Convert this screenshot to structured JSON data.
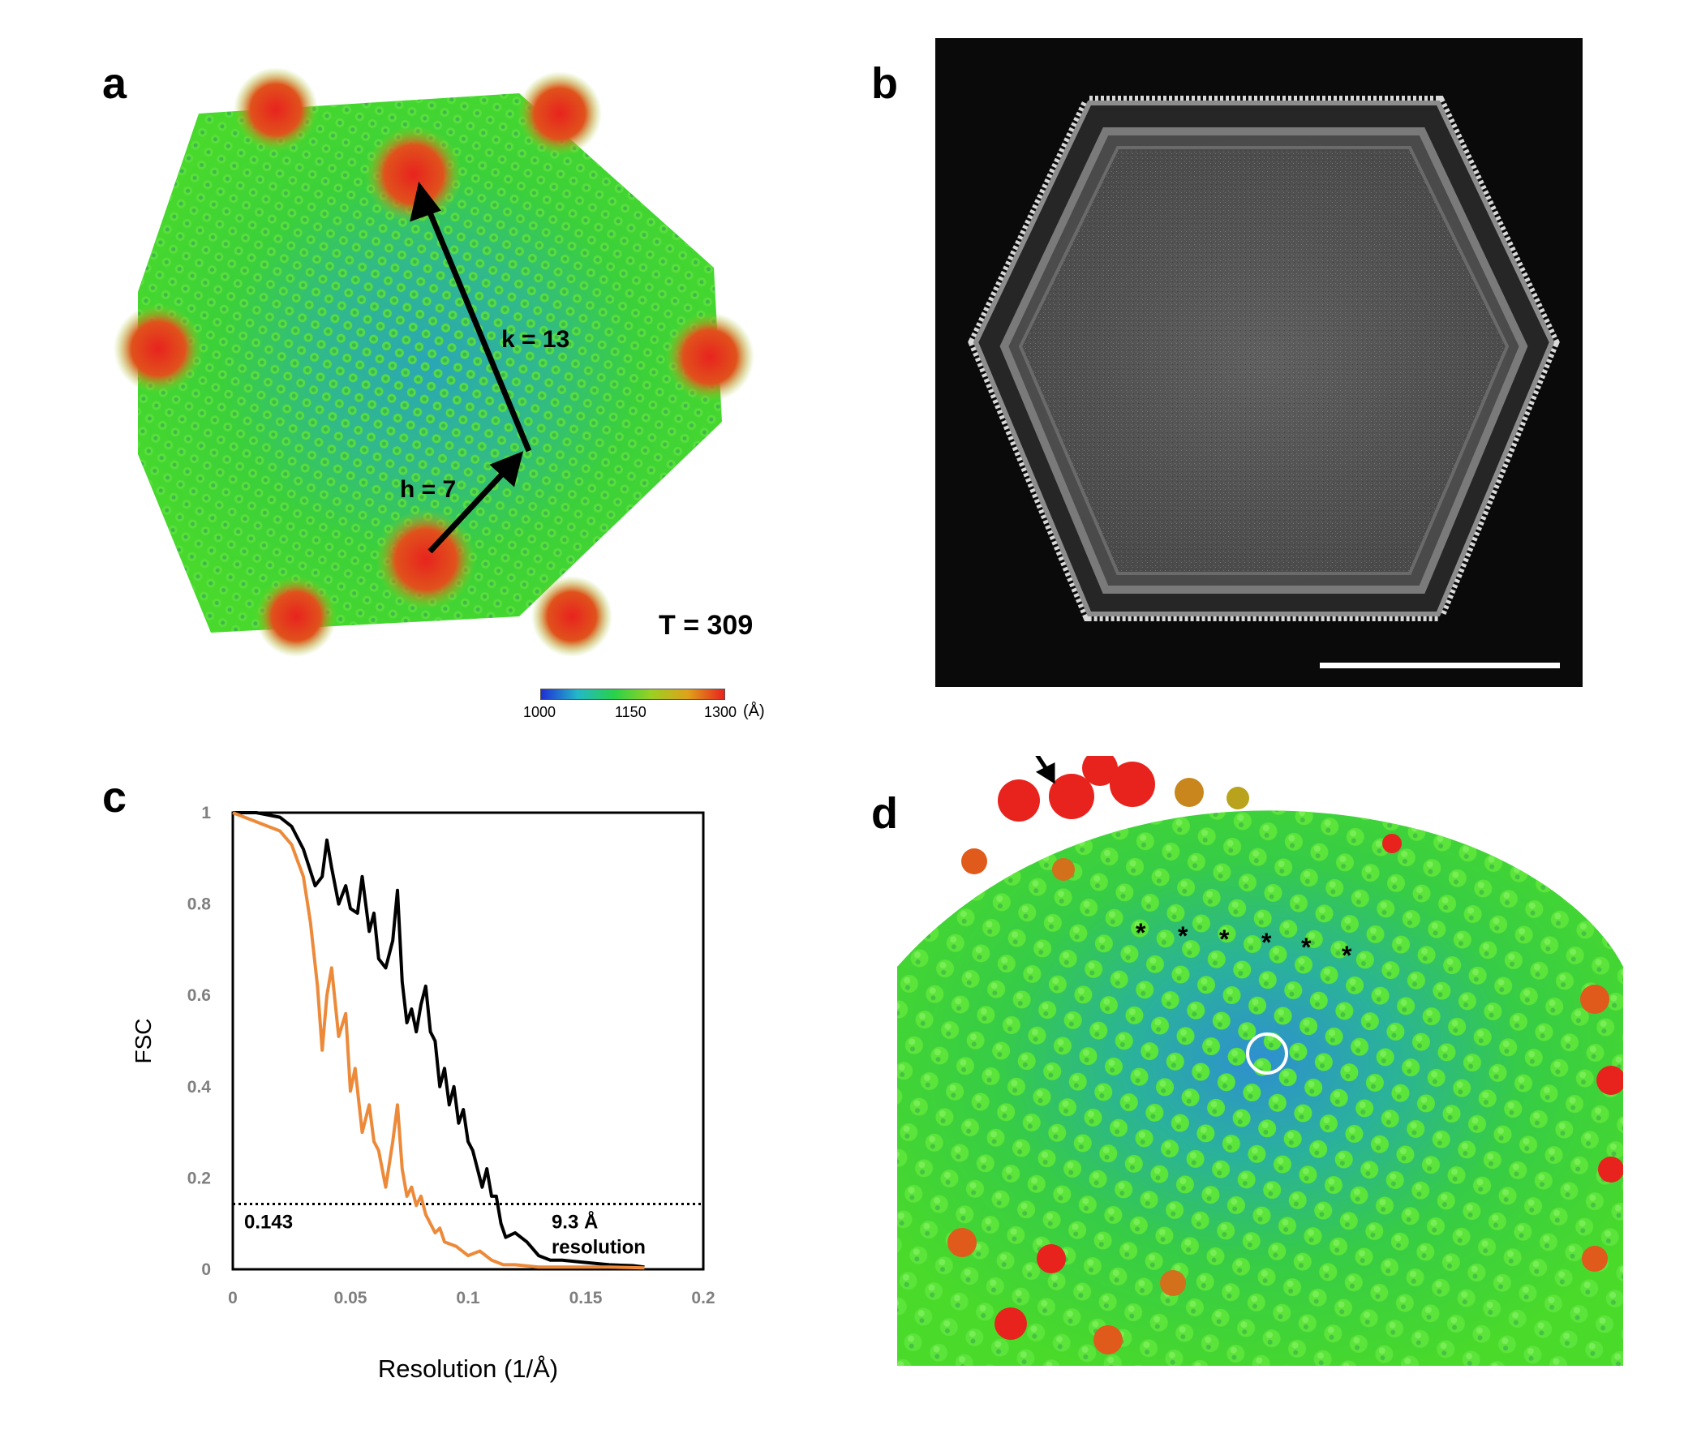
{
  "panels": {
    "a": {
      "label": "a",
      "h_label": "h = 7",
      "k_label": "k = 13",
      "t_label": "T = 309",
      "colorbar": {
        "min_label": "1000",
        "mid_label": "1150",
        "max_label": "1300",
        "unit_label": "(Å)",
        "colors": [
          "#1f2fd6",
          "#23b8c8",
          "#28d24a",
          "#9ad022",
          "#e0a21a",
          "#e8231e"
        ]
      }
    },
    "b": {
      "label": "b"
    },
    "c": {
      "label": "c"
    },
    "d": {
      "label": "d"
    }
  },
  "chart_data": {
    "type": "line",
    "xlabel": "Resolution (1/Å)",
    "ylabel": "FSC",
    "xlim": [
      0,
      0.2
    ],
    "ylim": [
      0,
      1
    ],
    "x_ticks": [
      "0",
      "0.05",
      "0.1",
      "0.15",
      "0.2"
    ],
    "y_ticks": [
      "0",
      "0.2",
      "0.4",
      "0.6",
      "0.8",
      "1"
    ],
    "threshold": {
      "value": 0.143,
      "label": "0.143"
    },
    "annotation": {
      "line1": "9.3 Å",
      "line2": "resolution"
    },
    "series": [
      {
        "color": "#000000",
        "x": [
          0,
          0.01,
          0.02,
          0.025,
          0.03,
          0.035,
          0.038,
          0.04,
          0.042,
          0.045,
          0.048,
          0.05,
          0.053,
          0.055,
          0.058,
          0.06,
          0.062,
          0.065,
          0.068,
          0.07,
          0.072,
          0.074,
          0.076,
          0.078,
          0.08,
          0.082,
          0.084,
          0.086,
          0.088,
          0.09,
          0.092,
          0.094,
          0.096,
          0.098,
          0.1,
          0.102,
          0.104,
          0.106,
          0.108,
          0.11,
          0.112,
          0.114,
          0.116,
          0.12,
          0.125,
          0.13,
          0.135,
          0.14,
          0.15,
          0.16,
          0.17,
          0.175
        ],
        "y": [
          1.0,
          1.0,
          0.99,
          0.97,
          0.92,
          0.84,
          0.86,
          0.94,
          0.88,
          0.8,
          0.84,
          0.79,
          0.78,
          0.86,
          0.74,
          0.78,
          0.68,
          0.66,
          0.72,
          0.83,
          0.63,
          0.54,
          0.57,
          0.52,
          0.58,
          0.62,
          0.52,
          0.5,
          0.4,
          0.44,
          0.36,
          0.4,
          0.32,
          0.35,
          0.28,
          0.26,
          0.22,
          0.18,
          0.22,
          0.16,
          0.16,
          0.1,
          0.07,
          0.08,
          0.06,
          0.03,
          0.02,
          0.02,
          0.015,
          0.01,
          0.008,
          0.005
        ]
      },
      {
        "color": "#ec8a3a",
        "x": [
          0,
          0.01,
          0.02,
          0.025,
          0.03,
          0.033,
          0.036,
          0.038,
          0.04,
          0.042,
          0.045,
          0.048,
          0.05,
          0.052,
          0.055,
          0.058,
          0.06,
          0.062,
          0.065,
          0.068,
          0.07,
          0.072,
          0.074,
          0.076,
          0.078,
          0.08,
          0.082,
          0.084,
          0.086,
          0.088,
          0.09,
          0.095,
          0.1,
          0.105,
          0.11,
          0.115,
          0.12,
          0.13,
          0.14,
          0.15,
          0.16,
          0.175
        ],
        "y": [
          1.0,
          0.98,
          0.96,
          0.93,
          0.86,
          0.76,
          0.62,
          0.48,
          0.6,
          0.66,
          0.51,
          0.56,
          0.39,
          0.44,
          0.3,
          0.36,
          0.28,
          0.26,
          0.18,
          0.28,
          0.36,
          0.22,
          0.16,
          0.18,
          0.14,
          0.16,
          0.12,
          0.1,
          0.08,
          0.09,
          0.06,
          0.05,
          0.03,
          0.04,
          0.02,
          0.01,
          0.01,
          0.005,
          0.005,
          0.005,
          0.005,
          0.003
        ]
      }
    ]
  },
  "panel_d_markers": {
    "asterisk": "*",
    "asterisk_count": 6
  }
}
